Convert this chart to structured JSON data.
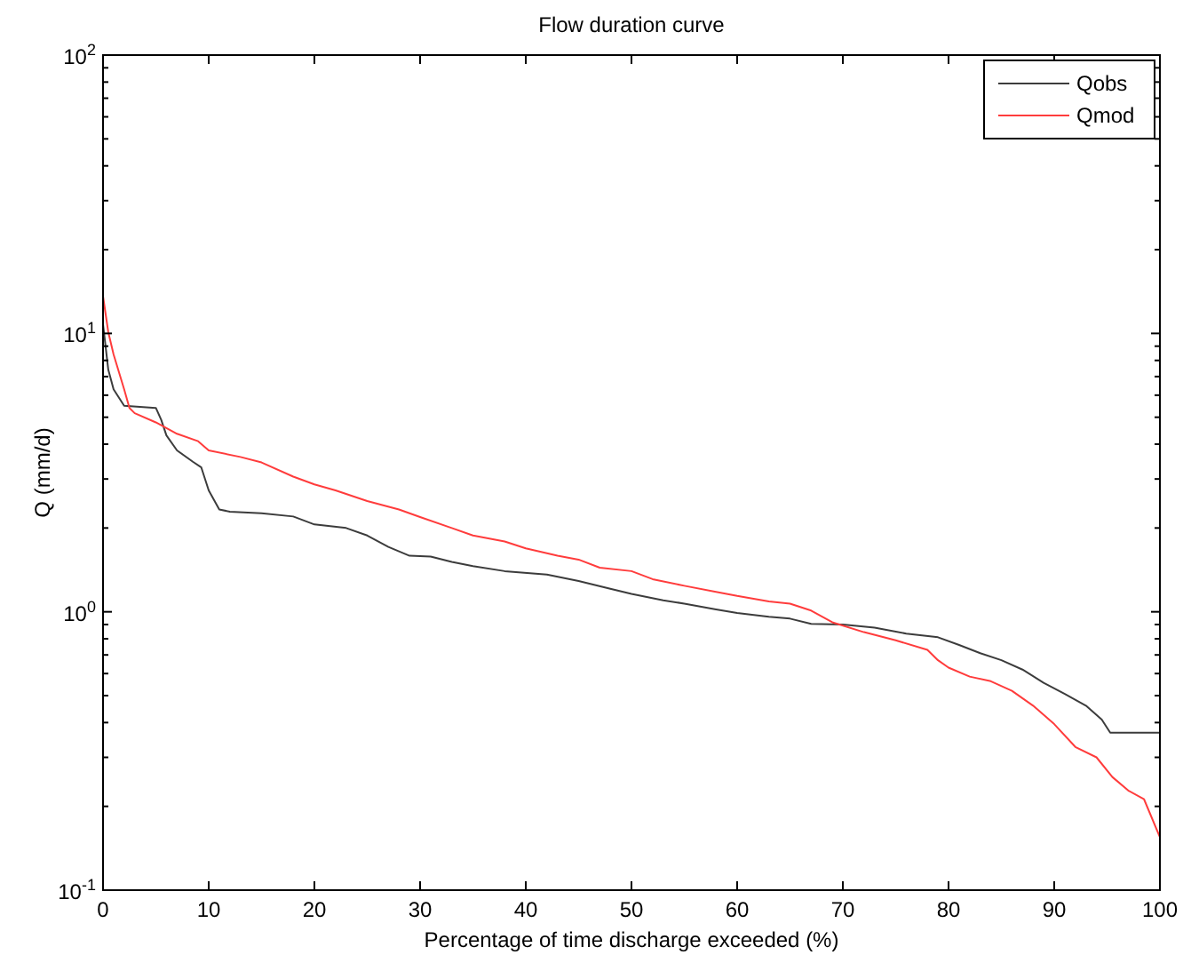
{
  "chart_data": {
    "type": "line",
    "title": "Flow duration curve",
    "xlabel": "Percentage of time discharge exceeded (%)",
    "ylabel": "Q (mm/d)",
    "xlim": [
      0,
      100
    ],
    "xticks": [
      0,
      10,
      20,
      30,
      40,
      50,
      60,
      70,
      80,
      90,
      100
    ],
    "ylim": [
      0.1,
      100
    ],
    "yticks": [
      {
        "value": 0.1,
        "label": "10$^{-1}$"
      },
      {
        "value": 1,
        "label": "10$^{0}$"
      },
      {
        "value": 10,
        "label": "10$^{1}$"
      },
      {
        "value": 100,
        "label": "10$^{2}$"
      }
    ],
    "log": "y",
    "grid": false,
    "legend": "top right",
    "line_style": "solid",
    "marker": "none",
    "series": [
      {
        "name": "Qobs",
        "color": "#3c3c3c",
        "x": [
          0,
          0.5,
          1,
          2,
          5,
          5.5,
          6,
          7,
          8.5,
          9.3,
          10,
          11,
          12,
          15,
          18,
          20,
          23,
          25,
          27,
          29,
          31,
          33,
          35,
          38,
          42,
          45,
          48,
          50,
          53,
          55,
          58,
          60,
          63,
          65,
          67,
          70,
          73,
          76,
          79,
          81,
          83,
          85,
          87,
          89,
          91,
          93,
          94.5,
          95.3,
          100
        ],
        "values": [
          10.8,
          7.4,
          6.3,
          5.5,
          5.4,
          4.9,
          4.3,
          3.8,
          3.46,
          3.3,
          2.73,
          2.33,
          2.29,
          2.26,
          2.2,
          2.06,
          2.0,
          1.88,
          1.71,
          1.59,
          1.58,
          1.51,
          1.46,
          1.4,
          1.36,
          1.29,
          1.21,
          1.16,
          1.1,
          1.07,
          1.02,
          0.99,
          0.96,
          0.945,
          0.905,
          0.9,
          0.877,
          0.835,
          0.81,
          0.76,
          0.71,
          0.67,
          0.62,
          0.556,
          0.507,
          0.46,
          0.41,
          0.368,
          0.368
        ]
      },
      {
        "name": "Qmod",
        "color": "#ff3c3c",
        "x": [
          0,
          0.5,
          1,
          2,
          2.5,
          3,
          5,
          7,
          9,
          10,
          13,
          15,
          18,
          20,
          22,
          25,
          28,
          30,
          33,
          35,
          38,
          40,
          43,
          45,
          47,
          50,
          52,
          55,
          58,
          60,
          63,
          65,
          67,
          69,
          72,
          75,
          78,
          79,
          80,
          82,
          84,
          86,
          88,
          90,
          92,
          94,
          95.5,
          97,
          98.5,
          100
        ],
        "values": [
          13.6,
          10.1,
          8.4,
          6.3,
          5.4,
          5.17,
          4.79,
          4.36,
          4.1,
          3.8,
          3.6,
          3.44,
          3.06,
          2.87,
          2.73,
          2.5,
          2.33,
          2.19,
          2.0,
          1.88,
          1.79,
          1.69,
          1.59,
          1.54,
          1.44,
          1.4,
          1.31,
          1.24,
          1.18,
          1.14,
          1.09,
          1.07,
          1.01,
          0.917,
          0.845,
          0.79,
          0.73,
          0.67,
          0.63,
          0.585,
          0.563,
          0.52,
          0.46,
          0.395,
          0.327,
          0.3,
          0.255,
          0.228,
          0.212,
          0.155
        ]
      }
    ]
  }
}
